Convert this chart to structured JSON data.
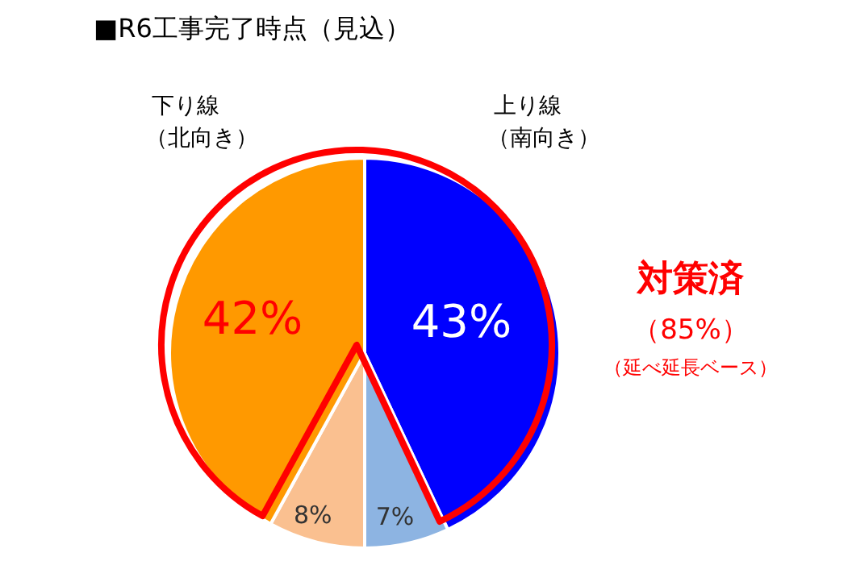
{
  "chart_data": {
    "type": "pie",
    "title": "■R6工事完了時点（見込）",
    "categories": [
      "上り線（南向き）",
      null,
      null,
      "下り線（北向き）"
    ],
    "values": [
      43,
      7,
      8,
      42
    ],
    "colors": [
      "#0000ff",
      "#8db4e2",
      "#fac090",
      "#ff9900"
    ],
    "value_labels": [
      "43%",
      "7%",
      "8%",
      "42%"
    ],
    "annotations": [
      "対策済",
      "（85%）",
      "（延べ延長ベース）"
    ],
    "legend": false
  }
}
